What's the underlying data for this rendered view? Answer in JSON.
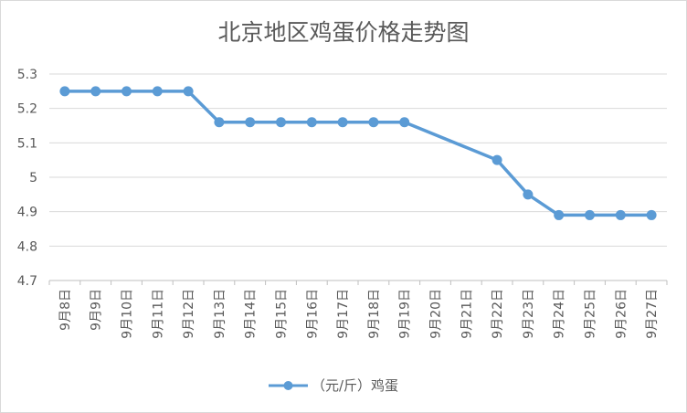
{
  "chart_data": {
    "type": "line",
    "title": "北京地区鸡蛋价格走势图",
    "categories": [
      "9月8日",
      "9月9日",
      "9月10日",
      "9月11日",
      "9月12日",
      "9月13日",
      "9月14日",
      "9月15日",
      "9月16日",
      "9月17日",
      "9月18日",
      "9月19日",
      "9月20日",
      "9月21日",
      "9月22日",
      "9月23日",
      "9月24日",
      "9月25日",
      "9月26日",
      "9月27日"
    ],
    "series": [
      {
        "name": "（元/斤）鸡蛋",
        "values": [
          5.25,
          5.25,
          5.25,
          5.25,
          5.25,
          5.16,
          5.16,
          5.16,
          5.16,
          5.16,
          5.16,
          5.16,
          null,
          null,
          5.05,
          4.95,
          4.89,
          4.89,
          4.89,
          4.89
        ],
        "color": "#5b9bd5"
      }
    ],
    "yticks": [
      "4.7",
      "4.8",
      "4.9",
      "5",
      "5.1",
      "5.2",
      "5.3"
    ],
    "ylim": [
      4.7,
      5.3
    ],
    "grid": true,
    "legend_position": "bottom",
    "gap_handling": "connect"
  }
}
